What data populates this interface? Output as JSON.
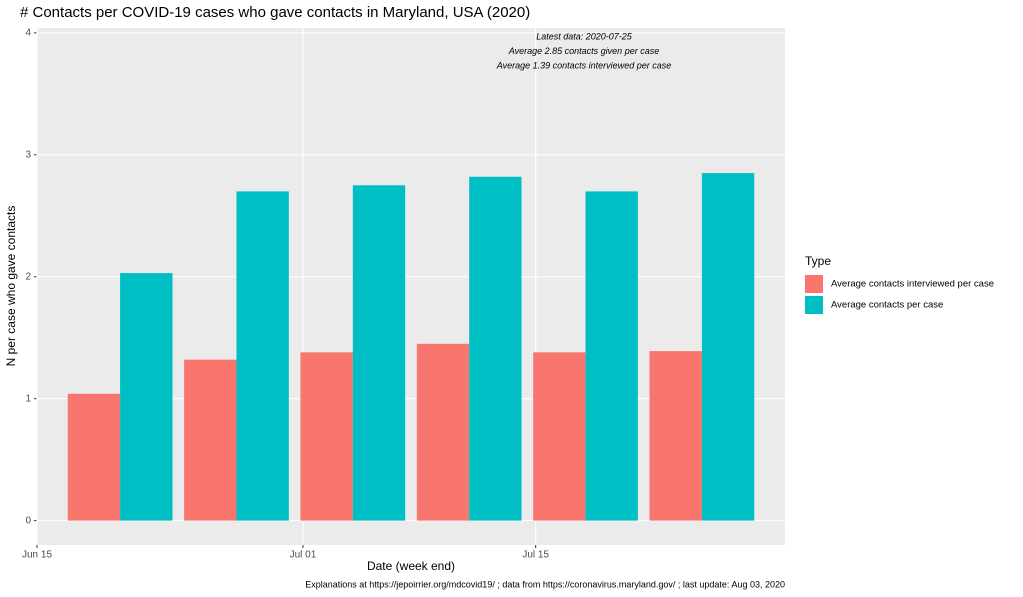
{
  "chart_data": {
    "type": "bar",
    "title": "# Contacts per COVID-19 cases who gave contacts in Maryland, USA (2020)",
    "x_label": "Date (week end)",
    "y_label": "N per case who gave contacts",
    "caption": "Explanations at https://jepoirrier.org/mdcovid19/ ; data from https://coronavirus.maryland.gov/ ; last update: Aug 03, 2020",
    "annotations": [
      "Latest data: 2020-07-25",
      "Average 2.85 contacts given per case",
      "Average 1.39 contacts interviewed per case"
    ],
    "legend_title": "Type",
    "x": [
      "Jun 20",
      "Jun 27",
      "Jul 04",
      "Jul 11",
      "Jul 18",
      "Jul 25"
    ],
    "series": [
      {
        "name": "Average contacts interviewed per case",
        "color": "#f8766d",
        "values": [
          1.04,
          1.32,
          1.38,
          1.45,
          1.38,
          1.39
        ]
      },
      {
        "name": "Average contacts per case",
        "color": "#00bfc4",
        "values": [
          2.03,
          2.7,
          2.75,
          2.82,
          2.7,
          2.85
        ]
      }
    ],
    "xlim": [
      "Jun 15",
      "Jul 30"
    ],
    "xticks": [
      "Jun 15",
      "Jul 01",
      "Jul 15"
    ],
    "ylim": [
      -0.2,
      4.04
    ],
    "yticks": [
      0,
      1,
      2,
      3,
      4
    ],
    "grid": true,
    "legend_position": "right"
  }
}
